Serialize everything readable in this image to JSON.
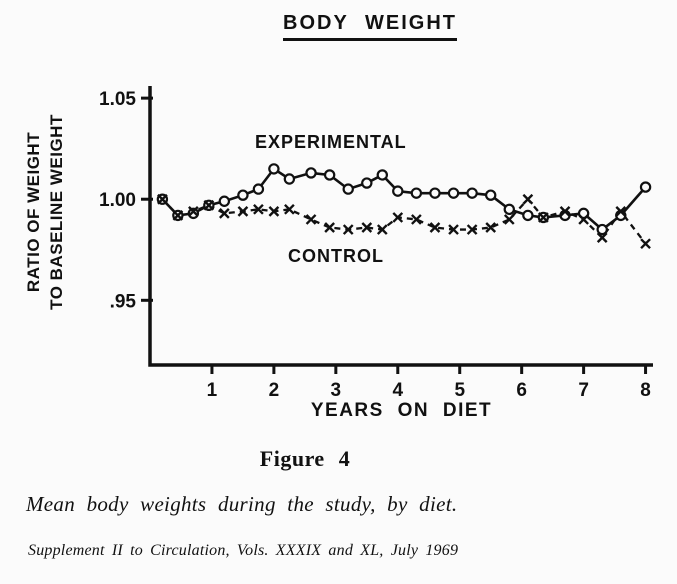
{
  "page": {
    "figure_label": "Figure 4",
    "caption": "Mean body weights during the study, by diet.",
    "source_line": "Supplement II to Circulation, Vols. XXXIX and XL, July 1969"
  },
  "chart_data": {
    "type": "line",
    "title": "BODY WEIGHT",
    "xlabel": "YEARS ON DIET",
    "ylabel": "RATIO OF WEIGHT TO BASELINE WEIGHT",
    "ylabel_lines": [
      "RATIO OF WEIGHT",
      "TO BASELINE WEIGHT"
    ],
    "xlim": [
      0,
      8.12
    ],
    "ylim": [
      0.918,
      1.056
    ],
    "grid": false,
    "legend_position": "inline-annotations",
    "xticks": {
      "values": [
        1,
        2,
        3,
        4,
        5,
        6,
        7,
        8
      ],
      "labels": [
        "1",
        "2",
        "3",
        "4",
        "5",
        "6",
        "7",
        "8"
      ]
    },
    "yticks": {
      "values": [
        1.05,
        1.0,
        0.95
      ],
      "labels": [
        "1.05",
        "1.00",
        ".95"
      ]
    },
    "x": [
      0.2,
      0.45,
      0.7,
      0.95,
      1.2,
      1.5,
      1.75,
      2.0,
      2.25,
      2.6,
      2.9,
      3.2,
      3.5,
      3.75,
      4.0,
      4.3,
      4.6,
      4.9,
      5.2,
      5.5,
      5.8,
      6.1,
      6.35,
      6.7,
      7.0,
      7.3,
      7.6,
      8.0
    ],
    "series": [
      {
        "name": "EXPERIMENTAL",
        "marker": "circle",
        "line_style": "solid",
        "color": "#111111",
        "values": [
          1.0,
          0.992,
          0.993,
          0.997,
          0.999,
          1.002,
          1.005,
          1.015,
          1.01,
          1.013,
          1.012,
          1.005,
          1.008,
          1.012,
          1.004,
          1.003,
          1.003,
          1.003,
          1.003,
          1.002,
          0.995,
          0.992,
          0.991,
          0.992,
          0.993,
          0.985,
          0.992,
          1.006
        ]
      },
      {
        "name": "CONTROL",
        "marker": "x",
        "line_style": "dashed",
        "color": "#111111",
        "values": [
          1.0,
          0.992,
          0.994,
          0.997,
          0.993,
          0.994,
          0.995,
          0.994,
          0.995,
          0.99,
          0.986,
          0.985,
          0.986,
          0.985,
          0.991,
          0.99,
          0.986,
          0.985,
          0.985,
          0.986,
          0.99,
          1.0,
          0.991,
          0.994,
          0.99,
          0.981,
          0.994,
          0.978
        ]
      }
    ]
  }
}
